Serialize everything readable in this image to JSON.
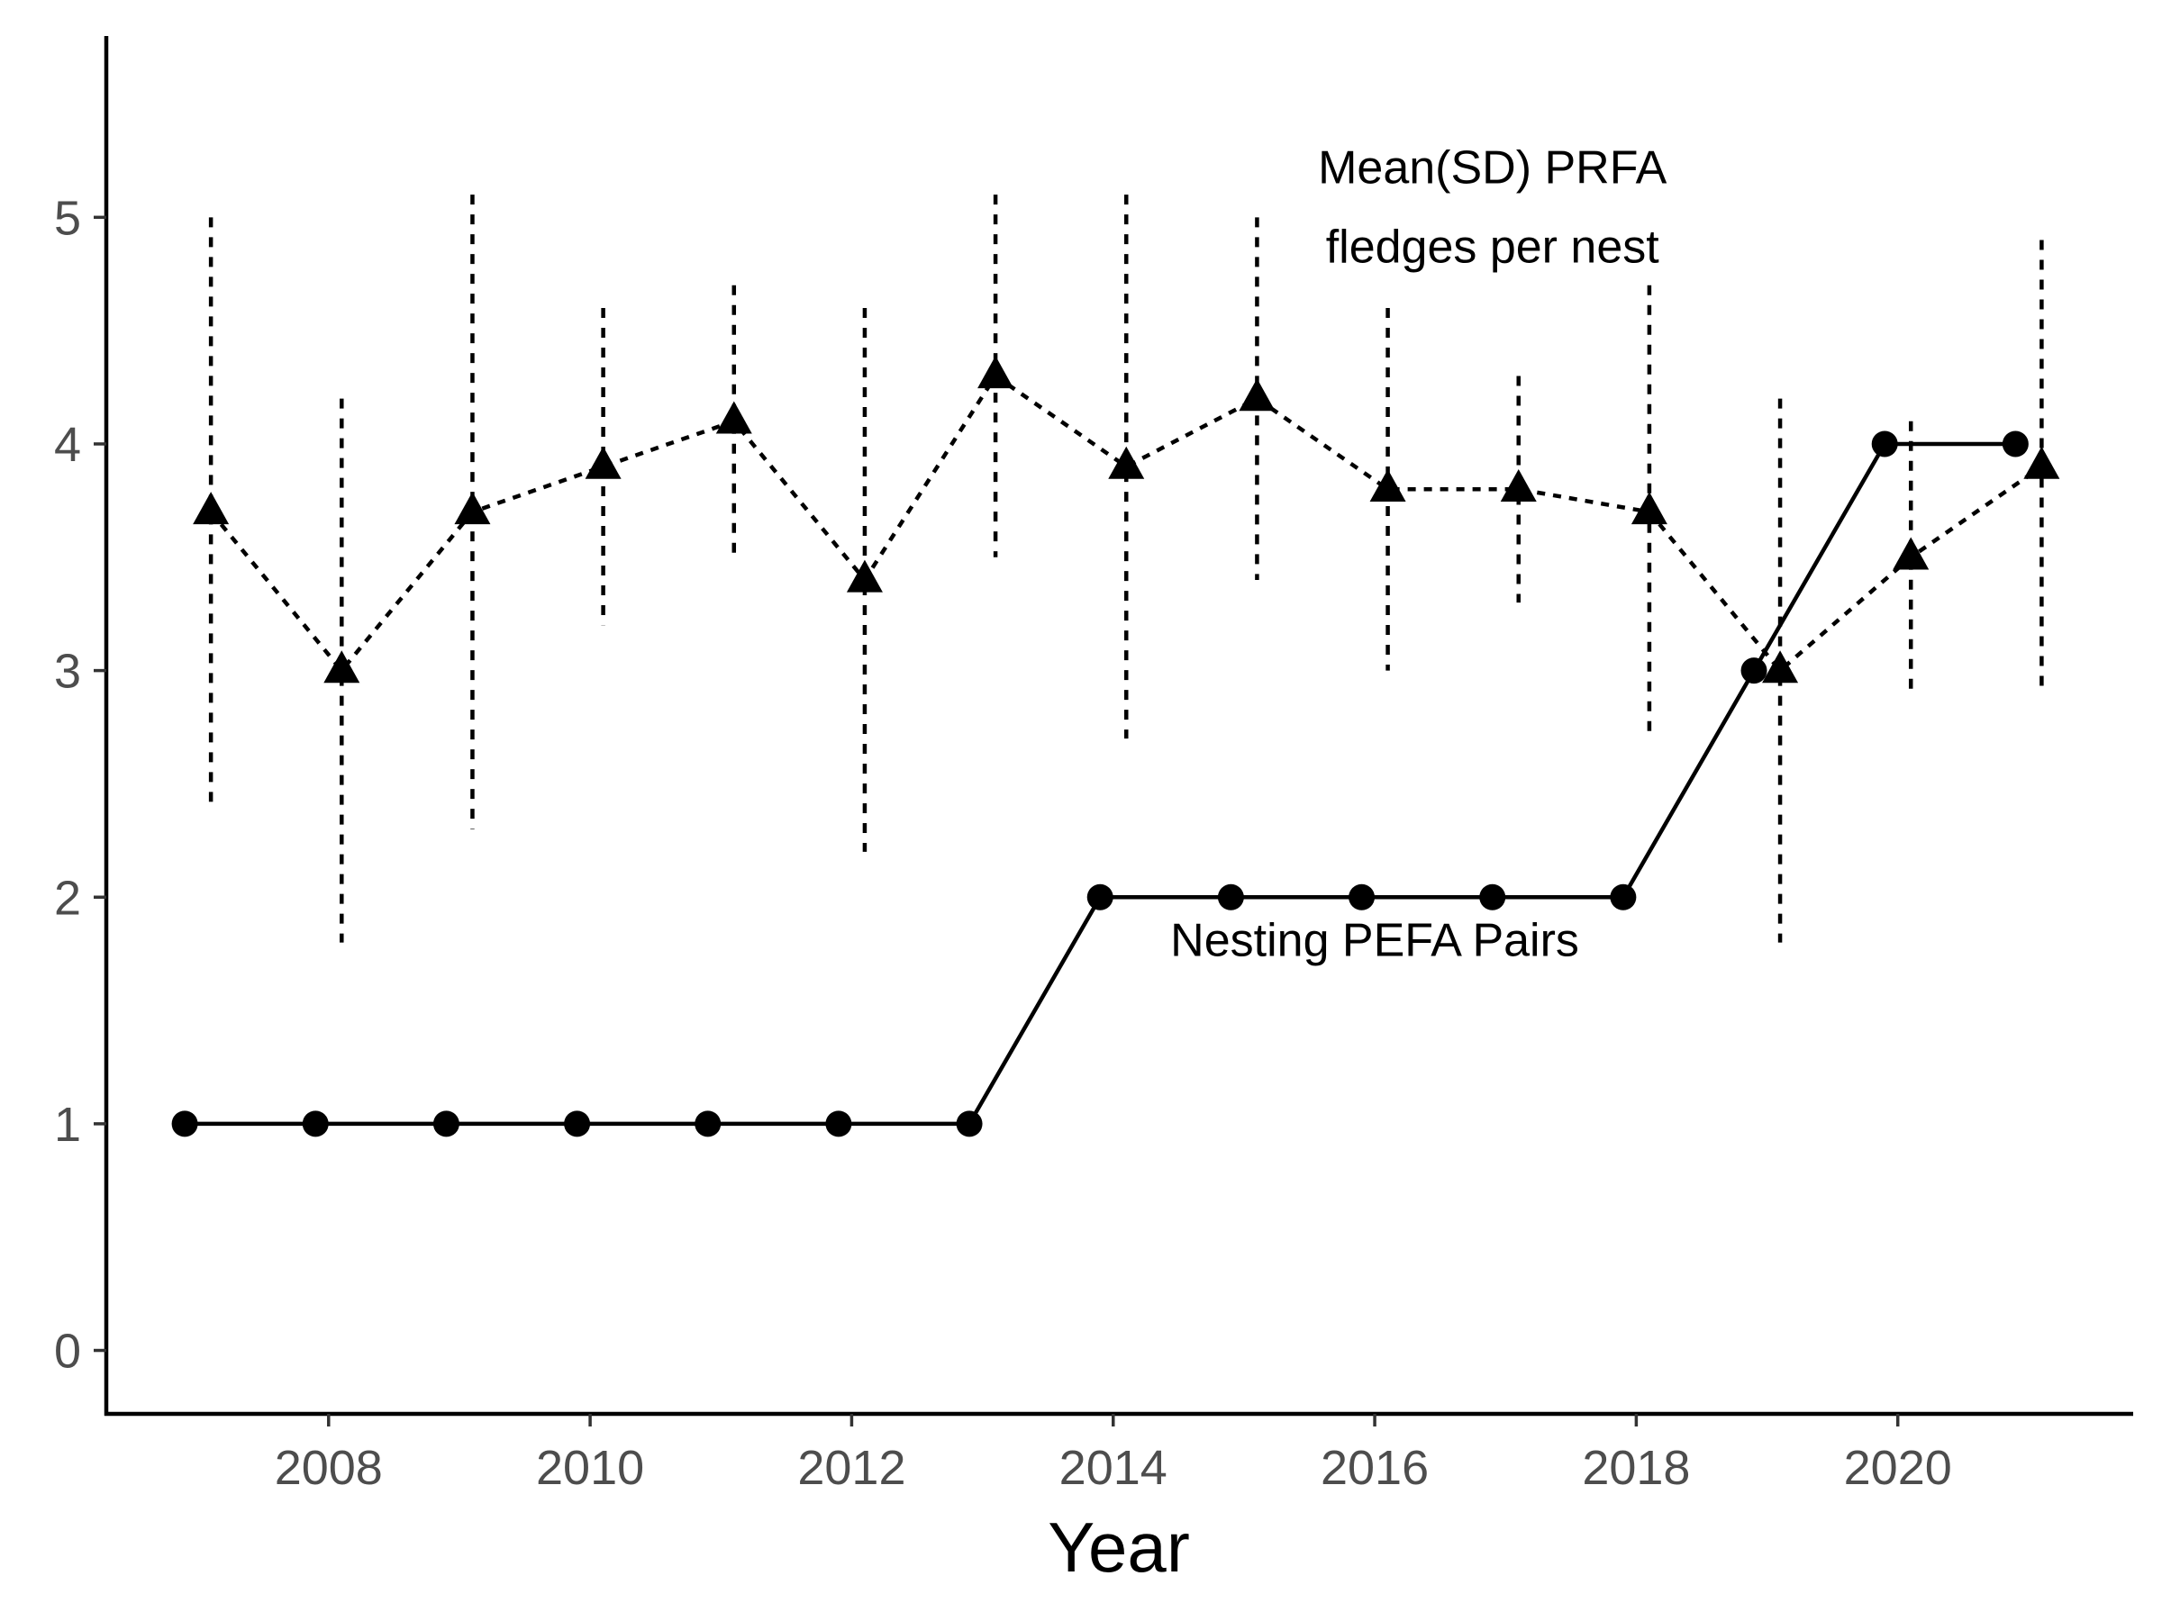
{
  "chart_data": {
    "type": "line",
    "xlabel": "Year",
    "ylabel": "",
    "xlim": [
      2006.3,
      2021.8
    ],
    "ylim": [
      -0.28,
      5.8
    ],
    "x_ticks": [
      2008,
      2010,
      2012,
      2014,
      2016,
      2018,
      2020
    ],
    "y_ticks": [
      0,
      1,
      2,
      3,
      4,
      5
    ],
    "grid": false,
    "legend": "none",
    "series": [
      {
        "id": "pefa",
        "style": "solid",
        "marker": "circle",
        "color": "#000000",
        "x_offset": -0.1,
        "x": [
          2007,
          2008,
          2009,
          2010,
          2011,
          2012,
          2013,
          2014,
          2015,
          2016,
          2017,
          2018,
          2019,
          2020,
          2021
        ],
        "y": [
          1,
          1,
          1,
          1,
          1,
          1,
          1,
          2,
          2,
          2,
          2,
          2,
          3,
          4,
          4
        ]
      },
      {
        "id": "prfa",
        "style": "dotted",
        "marker": "triangle",
        "color": "#000000",
        "x_offset": 0.1,
        "x": [
          2007,
          2008,
          2009,
          2010,
          2011,
          2012,
          2013,
          2014,
          2015,
          2016,
          2017,
          2018,
          2019,
          2020,
          2021
        ],
        "y": [
          3.7,
          3.0,
          3.7,
          3.9,
          4.1,
          3.4,
          4.3,
          3.9,
          4.2,
          3.8,
          3.8,
          3.7,
          3.0,
          3.5,
          3.9
        ],
        "sd": [
          1.3,
          1.2,
          1.4,
          0.7,
          0.6,
          1.2,
          0.8,
          1.2,
          0.8,
          0.8,
          0.5,
          1.0,
          1.2,
          0.6,
          1.0
        ]
      }
    ],
    "annotations": [
      {
        "id": "prfa-label-line1",
        "text": "Mean(SD) PRFA",
        "x": 2016.9,
        "y": 5.15
      },
      {
        "id": "prfa-label-line2",
        "text": "fledges per nest",
        "x": 2016.9,
        "y": 4.8
      },
      {
        "id": "pefa-label",
        "text": "Nesting PEFA Pairs",
        "x": 2016.0,
        "y": 1.74
      }
    ]
  }
}
